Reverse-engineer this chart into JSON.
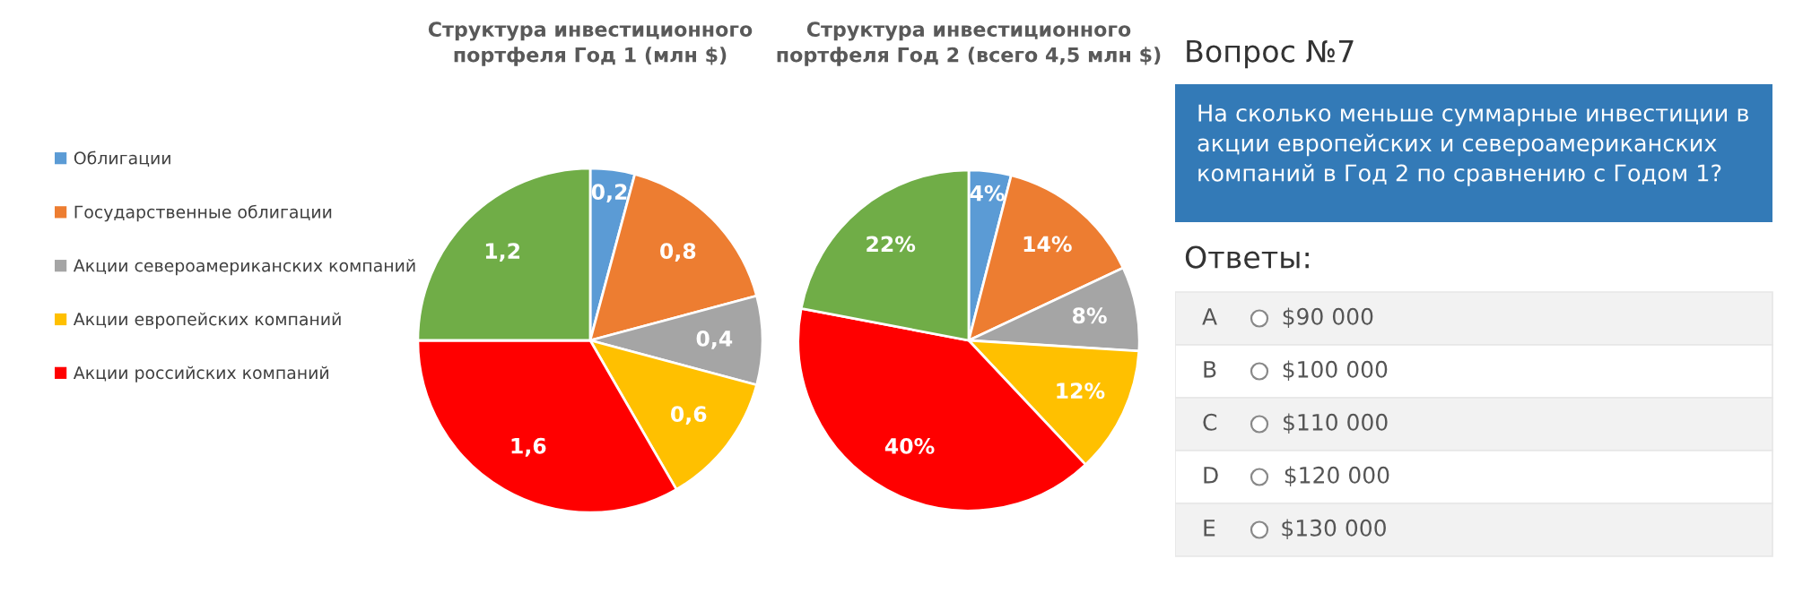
{
  "chart_data": [
    {
      "type": "pie",
      "title": "Структура инвестиционного\nпортфеля Год 1 (млн $)",
      "categories": [
        "Облигации",
        "Государственные облигации",
        "Акции североамериканских компаний",
        "Акции европейских компаний",
        "Акции российских компаний",
        null
      ],
      "values": [
        0.2,
        0.8,
        0.4,
        0.6,
        1.6,
        1.2
      ],
      "colors": [
        "#5b9bd5",
        "#ed7d31",
        "#a5a5a5",
        "#ffc000",
        "#ff0000",
        "#70ad47"
      ],
      "value_labels": [
        "0,2",
        "0,8",
        "0,4",
        "0,6",
        "1,6",
        "1,2"
      ],
      "legend": "left"
    },
    {
      "type": "pie",
      "title": "Структура инвестиционного\nпортфеля Год 2 (всего 4,5 млн $)",
      "categories": [
        null,
        null,
        null,
        null,
        null,
        null
      ],
      "values": [
        4,
        14,
        8,
        12,
        40,
        22
      ],
      "colors": [
        "#5b9bd5",
        "#ed7d31",
        "#a5a5a5",
        "#ffc000",
        "#ff0000",
        "#70ad47"
      ],
      "value_labels": [
        "4%",
        "14%",
        "8%",
        "12%",
        "40%",
        "22%"
      ]
    },
    {
      "type": "other",
      "title": "Вопрос №7",
      "subtitle": "На сколько меньше суммарные инвестиции в акции европейских и североамериканских компаний в Год 2 по сравнению с Годом 1?",
      "annotations": [
        "Ответы:",
        "A",
        "$90 000",
        "B",
        "$100 000",
        "C",
        "$110 000",
        "D",
        "$120 000",
        "E",
        "$130 000"
      ]
    }
  ]
}
